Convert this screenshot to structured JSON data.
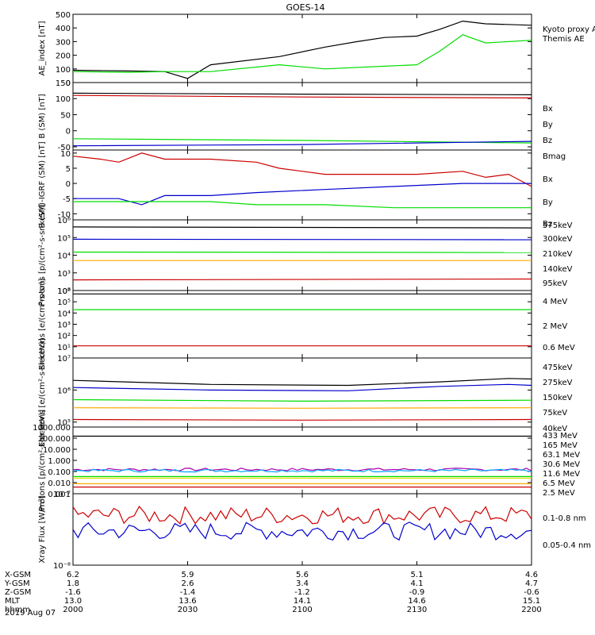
{
  "title": "GOES-14",
  "colors": {
    "black": "#000000",
    "green": "#00dd00",
    "blue": "#0000cc",
    "red": "#cc0000",
    "orange": "#ffaa00",
    "cyan": "#00aaff",
    "yellow": "#dddd00",
    "purple": "#aa00aa"
  },
  "time": {
    "x_ticks": [
      "2000",
      "2030",
      "2100",
      "2130",
      "2200"
    ]
  },
  "ephemeris": {
    "row_labels": [
      "X-GSM",
      "Y-GSM",
      "Z-GSM",
      "MLT",
      "hhmm"
    ],
    "date": "2019 Aug 07",
    "columns": [
      [
        "6.2",
        "1.8",
        "-1.6",
        "13.0",
        "2000"
      ],
      [
        "5.9",
        "2.6",
        "-1.4",
        "13.6",
        "2030"
      ],
      [
        "5.6",
        "3.4",
        "-1.2",
        "14.1",
        "2100"
      ],
      [
        "5.1",
        "4.1",
        "-0.9",
        "14.6",
        "2130"
      ],
      [
        "4.6",
        "4.7",
        "-0.6",
        "15.1",
        "2200"
      ]
    ]
  },
  "chart_data": [
    {
      "type": "line",
      "ylabel": "AE_index [nT]",
      "ylim": [
        0,
        500
      ],
      "yticks": [
        "0",
        "100",
        "200",
        "300",
        "400",
        "500"
      ],
      "legend": [
        "Kyoto proxy AE",
        "Themis AE"
      ],
      "series": [
        {
          "name": "Themis AE",
          "color": "black",
          "x": [
            0,
            0.12,
            0.2,
            0.25,
            0.3,
            0.45,
            0.55,
            0.62,
            0.68,
            0.75,
            0.8,
            0.85,
            0.9,
            1.0
          ],
          "values": [
            90,
            85,
            80,
            30,
            130,
            190,
            260,
            300,
            330,
            340,
            390,
            450,
            430,
            420
          ]
        },
        {
          "name": "Kyoto proxy AE",
          "color": "green",
          "x": [
            0,
            0.12,
            0.2,
            0.3,
            0.45,
            0.55,
            0.68,
            0.75,
            0.8,
            0.85,
            0.9,
            1.0
          ],
          "values": [
            80,
            75,
            80,
            80,
            130,
            100,
            120,
            130,
            230,
            350,
            290,
            310
          ]
        }
      ]
    },
    {
      "type": "line",
      "ylabel": "B (SM) [nT]",
      "ylim": [
        -60,
        150
      ],
      "yticks": [
        "-50",
        "0",
        "50",
        "100",
        "150"
      ],
      "legend": [
        "Bx",
        "By",
        "Bz",
        "Bmag"
      ],
      "series": [
        {
          "name": "Bmag",
          "color": "black",
          "x": [
            0,
            0.5,
            1.0
          ],
          "values": [
            117,
            114,
            112
          ]
        },
        {
          "name": "Bz",
          "color": "red",
          "x": [
            0,
            0.5,
            1.0
          ],
          "values": [
            110,
            105,
            102
          ]
        },
        {
          "name": "By",
          "color": "green",
          "x": [
            0,
            0.5,
            1.0
          ],
          "values": [
            -25,
            -30,
            -38
          ]
        },
        {
          "name": "Bx",
          "color": "blue",
          "x": [
            0,
            0.5,
            1.0
          ],
          "values": [
            -47,
            -43,
            -33
          ]
        }
      ]
    },
    {
      "type": "line",
      "ylabel": "B (SM)-IGRF (SM) [nT]",
      "ylim": [
        -12,
        11
      ],
      "yticks": [
        "-10",
        "-5",
        "0",
        "5",
        "10"
      ],
      "legend": [
        "Bx",
        "By",
        "Bz"
      ],
      "series": [
        {
          "name": "Bz",
          "color": "red",
          "x": [
            0,
            0.06,
            0.1,
            0.15,
            0.2,
            0.3,
            0.4,
            0.45,
            0.55,
            0.65,
            0.75,
            0.85,
            0.9,
            0.95,
            1.0
          ],
          "values": [
            9,
            8,
            7,
            10,
            8,
            8,
            7,
            5,
            3,
            3,
            3,
            4,
            2,
            3,
            -1
          ]
        },
        {
          "name": "Bx",
          "color": "blue",
          "x": [
            0,
            0.1,
            0.15,
            0.2,
            0.3,
            0.4,
            0.55,
            0.7,
            0.85,
            1.0
          ],
          "values": [
            -5,
            -5,
            -7,
            -4,
            -4,
            -3,
            -2,
            -1,
            0,
            0
          ]
        },
        {
          "name": "By",
          "color": "green",
          "x": [
            0,
            0.15,
            0.2,
            0.3,
            0.4,
            0.55,
            0.7,
            0.8,
            0.9,
            1.0
          ],
          "values": [
            -6,
            -6,
            -6,
            -6,
            -7,
            -7,
            -8,
            -8,
            -8,
            -8
          ]
        }
      ]
    },
    {
      "type": "line",
      "ylabel": "Protons [p/(cm²-s-sr-keV)]",
      "yscale": "log",
      "ylim": [
        100,
        1000000
      ],
      "yticks": [
        "10²",
        "10³",
        "10⁴",
        "10⁵",
        "10⁶"
      ],
      "legend": [
        "575keV",
        "300keV",
        "210keV",
        "140keV",
        "95keV"
      ],
      "series": [
        {
          "name": "575keV",
          "color": "red",
          "x": [
            0,
            1.0
          ],
          "values": [
            400,
            450
          ]
        },
        {
          "name": "300keV",
          "color": "orange",
          "x": [
            0,
            1.0
          ],
          "values": [
            5000,
            5000
          ]
        },
        {
          "name": "210keV",
          "color": "green",
          "x": [
            0,
            1.0
          ],
          "values": [
            15000,
            14000
          ]
        },
        {
          "name": "140keV",
          "color": "blue",
          "x": [
            0,
            1.0
          ],
          "values": [
            80000,
            75000
          ]
        },
        {
          "name": "95keV",
          "color": "black",
          "x": [
            0,
            1.0
          ],
          "values": [
            400000,
            350000
          ]
        }
      ]
    },
    {
      "type": "line",
      "ylabel": "Electrons [e/(cm²-s-sr)]",
      "yscale": "log",
      "ylim": [
        1,
        1000000
      ],
      "yticks": [
        "10¹",
        "10²",
        "10³",
        "10⁴",
        "10⁵",
        "10⁶"
      ],
      "legend": [
        "4 MeV",
        "2 MeV",
        "0.6 MeV"
      ],
      "series": [
        {
          "name": "0.6 MeV",
          "color": "black",
          "x": [
            0,
            1.0
          ],
          "values": [
            500000,
            500000
          ]
        },
        {
          "name": "2 MeV",
          "color": "green",
          "x": [
            0,
            1.0
          ],
          "values": [
            20000,
            20000
          ]
        },
        {
          "name": "4 MeV",
          "color": "red",
          "x": [
            0,
            1.0
          ],
          "values": [
            12,
            12
          ]
        }
      ]
    },
    {
      "type": "line",
      "ylabel": "Electrons [e/(cm²-s-sr-keV)]",
      "yscale": "log",
      "ylim": [
        70000,
        10000000
      ],
      "yticks": [
        "10⁵",
        "10⁶",
        "10⁷"
      ],
      "legend": [
        "475keV",
        "275keV",
        "150keV",
        "75keV",
        "40keV"
      ],
      "series": [
        {
          "name": "40keV",
          "color": "black",
          "x": [
            0,
            0.3,
            0.6,
            0.8,
            0.95,
            1.0
          ],
          "values": [
            2000000,
            1500000,
            1400000,
            1800000,
            2300000,
            2200000
          ]
        },
        {
          "name": "75keV",
          "color": "blue",
          "x": [
            0,
            0.3,
            0.6,
            0.8,
            0.95,
            1.0
          ],
          "values": [
            1200000,
            1000000,
            950000,
            1300000,
            1500000,
            1400000
          ]
        },
        {
          "name": "150keV",
          "color": "green",
          "x": [
            0,
            0.5,
            1.0
          ],
          "values": [
            500000,
            450000,
            480000
          ]
        },
        {
          "name": "275keV",
          "color": "orange",
          "x": [
            0,
            0.5,
            1.0
          ],
          "values": [
            280000,
            270000,
            280000
          ]
        },
        {
          "name": "475keV",
          "color": "red",
          "x": [
            0,
            0.5,
            1.0
          ],
          "values": [
            120000,
            115000,
            120000
          ]
        }
      ]
    },
    {
      "type": "line",
      "ylabel": "Protons [p/(cm²-s-sr-keV)]",
      "yscale": "log",
      "ylim": [
        0.001,
        1000
      ],
      "yticks": [
        "0.001",
        "0.010",
        "0.100",
        "1.000",
        "10.000",
        "100.000",
        "1000.000"
      ],
      "legend": [
        "433 MeV",
        "165 MeV",
        "63.1 MeV",
        "30.6 MeV",
        "11.6 MeV",
        "6.5 MeV",
        "2.5 MeV"
      ],
      "series": [
        {
          "name": "2.5 MeV",
          "color": "black",
          "x": [
            0,
            1.0
          ],
          "values": [
            150,
            150
          ]
        },
        {
          "name": "6.5 MeV",
          "color": "purple",
          "noisy": true,
          "x": [
            0,
            1.0
          ],
          "values": [
            0.15,
            0.15
          ]
        },
        {
          "name": "11.6 MeV",
          "color": "cyan",
          "noisy": true,
          "x": [
            0,
            1.0
          ],
          "values": [
            0.12,
            0.12
          ]
        },
        {
          "name": "30.6 MeV",
          "color": "green",
          "x": [
            0,
            1.0
          ],
          "values": [
            0.035,
            0.035
          ]
        },
        {
          "name": "63.1 MeV",
          "color": "yellow",
          "x": [
            0,
            1.0
          ],
          "values": [
            0.025,
            0.025
          ]
        },
        {
          "name": "165 MeV",
          "color": "orange",
          "x": [
            0,
            1.0
          ],
          "values": [
            0.008,
            0.008
          ]
        },
        {
          "name": "433 MeV",
          "color": "red",
          "x": [
            0,
            1.0
          ],
          "values": [
            0.004,
            0.004
          ]
        }
      ]
    },
    {
      "type": "line",
      "ylabel": "Xray Flux [W/m²]",
      "yscale": "log",
      "ylim": [
        1e-08,
        1e-07
      ],
      "yticks": [
        "10⁻⁸",
        "10⁻⁷"
      ],
      "legend": [
        "0.1-0.8 nm",
        "0.05-0.4 nm"
      ],
      "series": [
        {
          "name": "0.1-0.8 nm",
          "color": "red",
          "noisy": true,
          "x": [
            0,
            1.0
          ],
          "values": [
            5e-08,
            5e-08
          ]
        },
        {
          "name": "0.05-0.4 nm",
          "color": "blue",
          "noisy": true,
          "x": [
            0,
            1.0
          ],
          "values": [
            3e-08,
            3e-08
          ]
        }
      ]
    }
  ]
}
